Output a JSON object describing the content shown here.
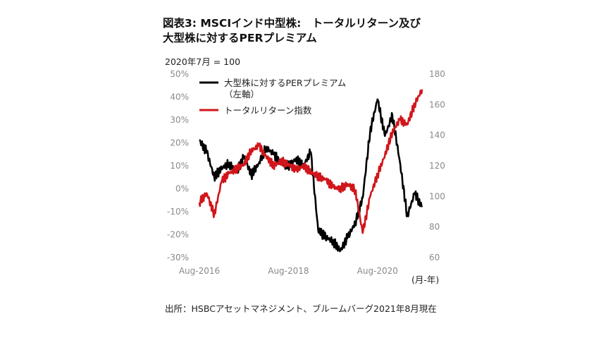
{
  "title_line1": "図表3: MSCIインド中型株:　トータルリターン及び",
  "title_line2": "大型株に対するPERプレミアム",
  "base_note": "2020年7月 = 100",
  "x_unit": "(月-年)",
  "source": "出所：HSBCアセットマネジメント、ブルームバーグ2021年8月現在",
  "colors": {
    "premium": "#000000",
    "total_return": "#d0161b",
    "axis_text": "#8a8a8a"
  },
  "chart_data": {
    "type": "line",
    "title": "図表3: MSCIインド中型株:　トータルリターン及び 大型株に対するPERプレミアム",
    "x_ticks": [
      "Aug-2016",
      "Aug-2018",
      "Aug-2020"
    ],
    "x_range": [
      "2016-08",
      "2021-08"
    ],
    "y_left": {
      "ticks": [
        "50%",
        "40%",
        "30%",
        "20%",
        "10%",
        "0%",
        "-10%",
        "-20%",
        "-30%"
      ],
      "range": [
        -30,
        50
      ]
    },
    "y_right": {
      "ticks": [
        "180",
        "160",
        "140",
        "120",
        "100",
        "80",
        "60"
      ],
      "range": [
        60,
        180
      ]
    },
    "legend_position": "top-left",
    "grid": false,
    "series": [
      {
        "name": "大型株に対するPERプレミアム",
        "name_sub": "（左軸）",
        "axis": "left",
        "color": "#000000",
        "x": [
          "2016-08",
          "2016-10",
          "2016-12",
          "2017-02",
          "2017-04",
          "2017-06",
          "2017-08",
          "2017-10",
          "2017-12",
          "2018-02",
          "2018-04",
          "2018-06",
          "2018-08",
          "2018-10",
          "2018-12",
          "2019-02",
          "2019-04",
          "2019-06",
          "2019-08",
          "2019-10",
          "2019-12",
          "2020-02",
          "2020-04",
          "2020-06",
          "2020-08",
          "2020-10",
          "2020-12",
          "2021-02",
          "2021-04",
          "2021-06",
          "2021-08"
        ],
        "values": [
          21,
          16,
          5,
          9,
          11,
          7,
          14,
          6,
          11,
          18,
          15,
          11,
          10,
          13,
          10,
          16,
          -18,
          -21,
          -23,
          -27,
          -21,
          -15,
          -4,
          25,
          39,
          23,
          32,
          12,
          -12,
          -2,
          -8
        ]
      },
      {
        "name": "トータルリターン指数",
        "axis": "right",
        "color": "#d0161b",
        "x": [
          "2016-08",
          "2016-10",
          "2016-12",
          "2017-02",
          "2017-04",
          "2017-06",
          "2017-08",
          "2017-10",
          "2017-12",
          "2018-02",
          "2018-04",
          "2018-06",
          "2018-08",
          "2018-10",
          "2018-12",
          "2019-02",
          "2019-04",
          "2019-06",
          "2019-08",
          "2019-10",
          "2019-12",
          "2020-02",
          "2020-04",
          "2020-06",
          "2020-08",
          "2020-10",
          "2020-12",
          "2021-02",
          "2021-04",
          "2021-06",
          "2021-08"
        ],
        "values": [
          96,
          102,
          88,
          110,
          115,
          118,
          121,
          130,
          133,
          126,
          120,
          123,
          121,
          117,
          120,
          116,
          113,
          111,
          106,
          105,
          108,
          104,
          76,
          100,
          114,
          127,
          142,
          150,
          147,
          160,
          170
        ]
      }
    ]
  }
}
